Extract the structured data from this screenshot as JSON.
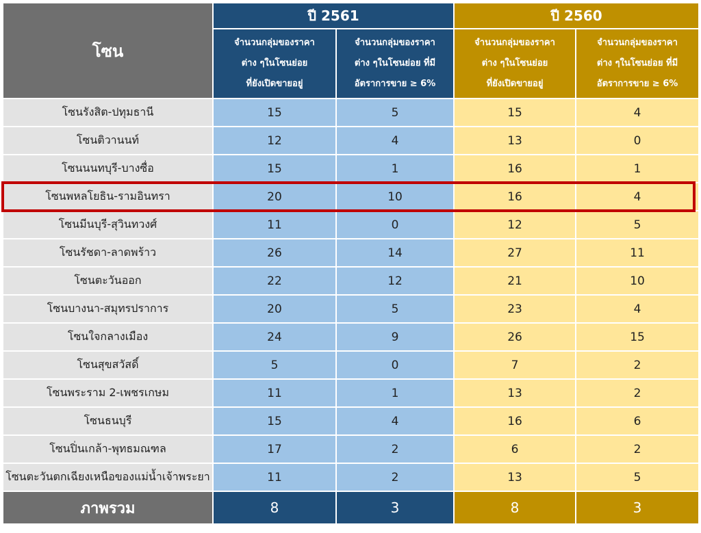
{
  "header": {
    "zone": "โซน",
    "year_2561": "ปี 2561",
    "year_2560": "ปี 2560",
    "col_open": [
      "จำนวนกลุ่มของราคา",
      "ต่าง ๆในโซนย่อย",
      "ที่ยังเปิดขายอยู่"
    ],
    "col_rate": [
      "จำนวนกลุ่มของราคา",
      "ต่าง ๆในโซนย่อย ที่มี",
      "อัตราการขาย ≥ 6%"
    ]
  },
  "rows": [
    {
      "zone": "โซนรังสิต-ปทุมธานี",
      "v2561_open": "15",
      "v2561_rate": "5",
      "v2560_open": "15",
      "v2560_rate": "4"
    },
    {
      "zone": "โซนติวานนท์",
      "v2561_open": "12",
      "v2561_rate": "4",
      "v2560_open": "13",
      "v2560_rate": "0"
    },
    {
      "zone": "โซนนนทบุรี-บางซื่อ",
      "v2561_open": "15",
      "v2561_rate": "1",
      "v2560_open": "16",
      "v2560_rate": "1"
    },
    {
      "zone": "โซนพหลโยธิน-รามอินทรา",
      "v2561_open": "20",
      "v2561_rate": "10",
      "v2560_open": "16",
      "v2560_rate": "4"
    },
    {
      "zone": "โซนมีนบุรี-สุวินทวงศ์",
      "v2561_open": "11",
      "v2561_rate": "0",
      "v2560_open": "12",
      "v2560_rate": "5"
    },
    {
      "zone": "โซนรัชดา-ลาดพร้าว",
      "v2561_open": "26",
      "v2561_rate": "14",
      "v2560_open": "27",
      "v2560_rate": "11"
    },
    {
      "zone": "โซนตะวันออก",
      "v2561_open": "22",
      "v2561_rate": "12",
      "v2560_open": "21",
      "v2560_rate": "10"
    },
    {
      "zone": "โซนบางนา-สมุทรปราการ",
      "v2561_open": "20",
      "v2561_rate": "5",
      "v2560_open": "23",
      "v2560_rate": "4"
    },
    {
      "zone": "โซนใจกลางเมือง",
      "v2561_open": "24",
      "v2561_rate": "9",
      "v2560_open": "26",
      "v2560_rate": "15"
    },
    {
      "zone": "โซนสุขสวัสดิ์",
      "v2561_open": "5",
      "v2561_rate": "0",
      "v2560_open": "7",
      "v2560_rate": "2"
    },
    {
      "zone": "โซนพระราม 2-เพชรเกษม",
      "v2561_open": "11",
      "v2561_rate": "1",
      "v2560_open": "13",
      "v2560_rate": "2"
    },
    {
      "zone": "โซนธนบุรี",
      "v2561_open": "15",
      "v2561_rate": "4",
      "v2560_open": "16",
      "v2560_rate": "6"
    },
    {
      "zone": "โซนปิ่นเกล้า-พุทธมณฑล",
      "v2561_open": "17",
      "v2561_rate": "2",
      "v2560_open": "6",
      "v2560_rate": "2"
    },
    {
      "zone": "โซนตะวันตกเฉียงเหนือของแม่น้ำเจ้าพระยา",
      "v2561_open": "11",
      "v2561_rate": "2",
      "v2560_open": "13",
      "v2560_rate": "5"
    }
  ],
  "total": {
    "label": "ภาพรวม",
    "v2561_open": "8",
    "v2561_rate": "3",
    "v2560_open": "8",
    "v2560_rate": "3"
  },
  "highlighted_row": "โซนพหลโยธิน-รามอินทรา",
  "colors": {
    "zone_header": "#6f6f6f",
    "year_2561": "#1f4e79",
    "year_2561_cells": "#9dc3e6",
    "year_2560": "#bf9000",
    "year_2560_cells": "#ffe699",
    "zone_cells": "#e3e3e3",
    "highlight": "#c00000"
  }
}
